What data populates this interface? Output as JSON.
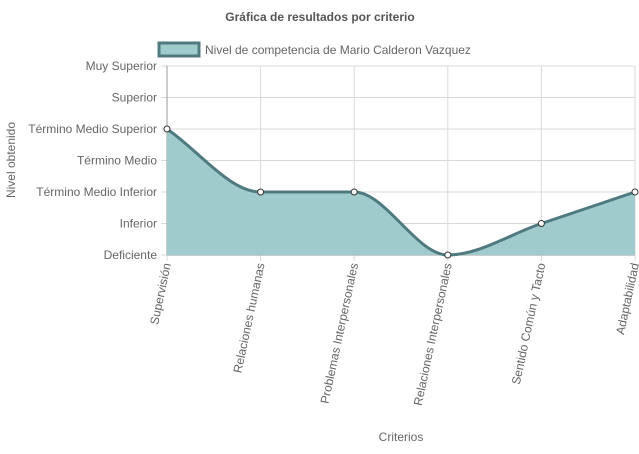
{
  "chart_data": {
    "type": "area",
    "title": "Gráfica de resultados por criterio",
    "xlabel": "Criterios",
    "ylabel": "Nivel obtenido",
    "y_levels": [
      "Deficiente",
      "Inferior",
      "Término Medio Inferior",
      "Término Medio",
      "Término Medio Superior",
      "Superior",
      "Muy Superior"
    ],
    "ylim": [
      0,
      6
    ],
    "categories": [
      "Supervisión",
      "Relaciones humanas",
      "Problemas Interpersonales",
      "Relaciones Interpersonales",
      "Sentido Común y Tacto",
      "Adaptabilidad"
    ],
    "series": [
      {
        "name": "Nivel de competencia de Mario Calderon Vazquez",
        "values": [
          4,
          2,
          2,
          0,
          1,
          2
        ]
      }
    ],
    "legend_position": "top",
    "grid": true,
    "colors": {
      "fill": "#9fcbcc",
      "line": "#4f7a80",
      "grid": "#d9d9d9",
      "axis": "#999999",
      "text": "#666666",
      "title": "#555555"
    }
  }
}
